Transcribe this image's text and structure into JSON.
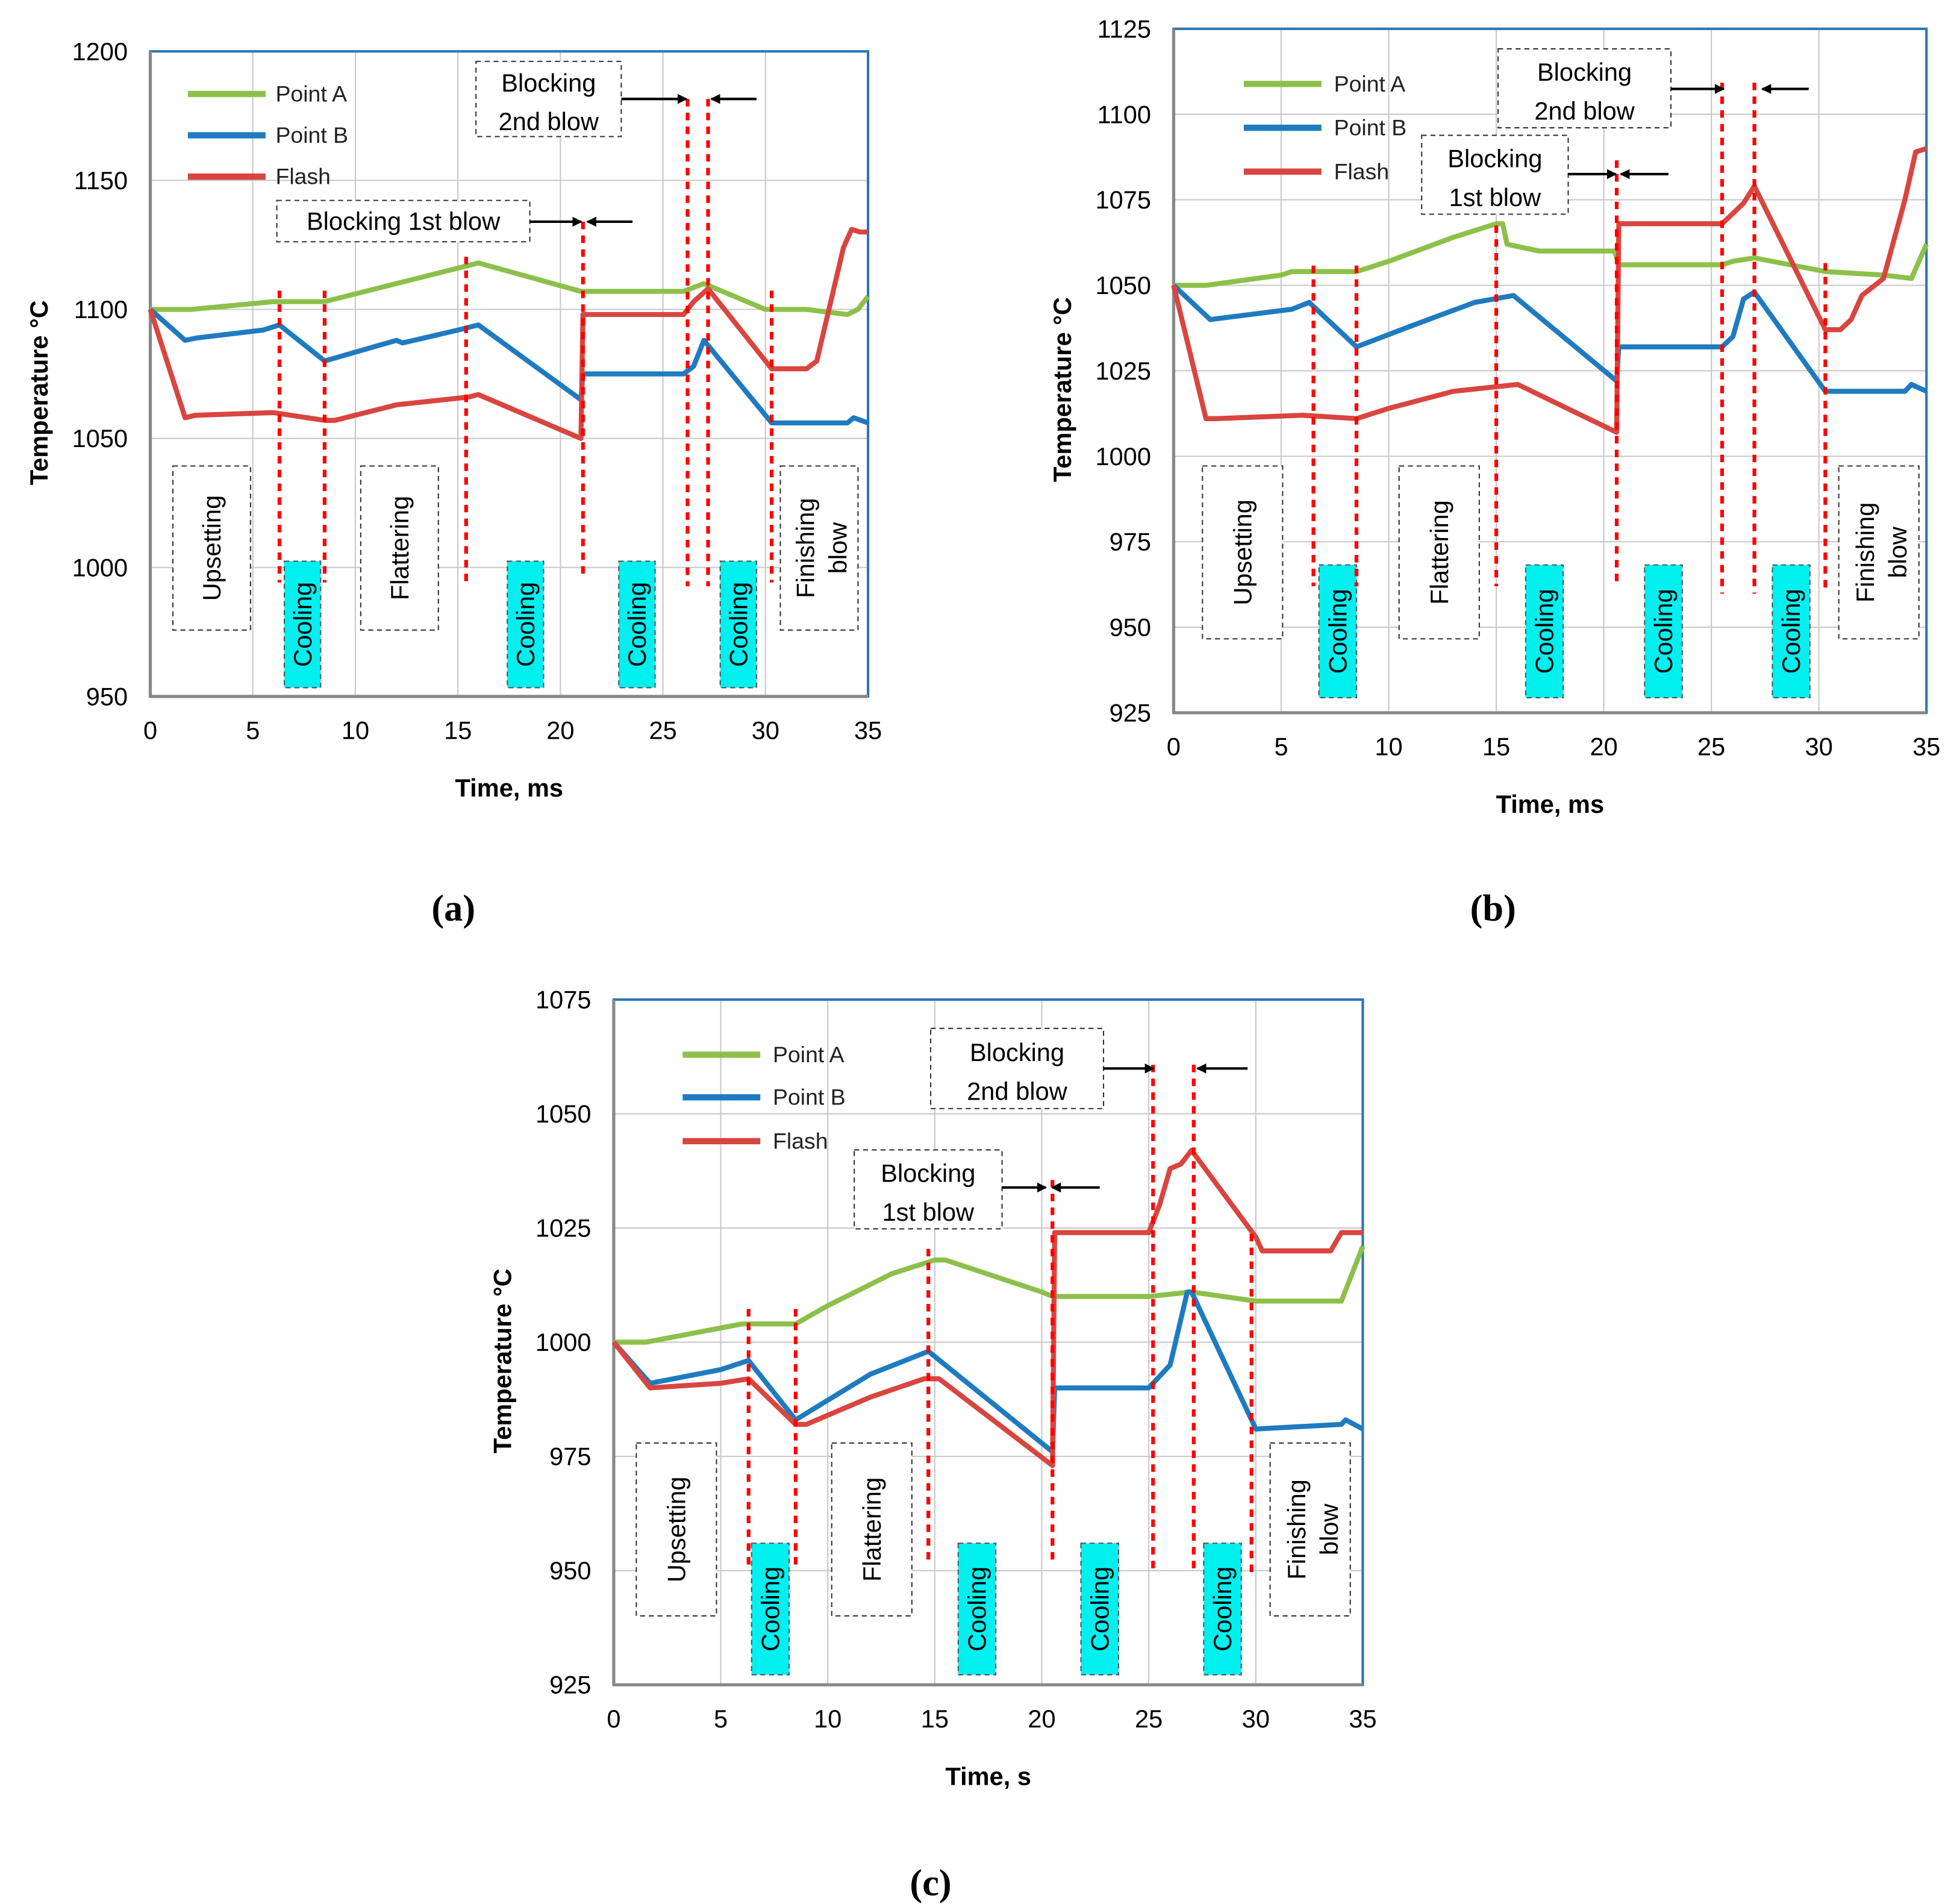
{
  "colors": {
    "point_a": "#8dc04b",
    "point_b": "#1f7bc0",
    "flash": "#d9453f",
    "boundary": "#ff0000",
    "cooling": "#00f0f0",
    "frame": "#2e75b6",
    "grid": "#c8c8c8"
  },
  "chart_data": [
    {
      "type": "line",
      "caption": "(a)",
      "xlabel": "Time, ms",
      "ylabel": "Temperature °C",
      "xlim": [
        0,
        35
      ],
      "ylim": [
        950,
        1200
      ],
      "xticks": [
        "0",
        "5",
        "10",
        "15",
        "20",
        "25",
        "30",
        "35"
      ],
      "yticks": [
        "950",
        "1000",
        "1050",
        "1100",
        "1150",
        "1200"
      ],
      "grid": true,
      "legend": "top-left",
      "series": [
        {
          "name": "Point A",
          "color": "#8dc04b",
          "points": [
            [
              0,
              1100
            ],
            [
              2,
              1100
            ],
            [
              6,
              1103
            ],
            [
              8.5,
              1103
            ],
            [
              10,
              1106
            ],
            [
              13,
              1112
            ],
            [
              15.5,
              1117
            ],
            [
              16,
              1118
            ],
            [
              21,
              1107
            ],
            [
              26,
              1107
            ],
            [
              27,
              1110
            ],
            [
              30,
              1100
            ],
            [
              32,
              1100
            ],
            [
              33,
              1099
            ],
            [
              34,
              1098
            ],
            [
              34.5,
              1100
            ],
            [
              35,
              1105
            ]
          ]
        },
        {
          "name": "Point B",
          "color": "#1f7bc0",
          "points": [
            [
              0,
              1100
            ],
            [
              1.7,
              1088
            ],
            [
              2.3,
              1089
            ],
            [
              5.5,
              1092
            ],
            [
              6.3,
              1094
            ],
            [
              8.5,
              1080
            ],
            [
              12,
              1088
            ],
            [
              12.3,
              1087
            ],
            [
              15,
              1092
            ],
            [
              16,
              1094
            ],
            [
              21,
              1065
            ],
            [
              21.1,
              1075
            ],
            [
              26,
              1075
            ],
            [
              26.5,
              1078
            ],
            [
              27,
              1088
            ],
            [
              30.3,
              1056
            ],
            [
              34,
              1056
            ],
            [
              34.3,
              1058
            ],
            [
              35,
              1056
            ]
          ]
        },
        {
          "name": "Flash",
          "color": "#d9453f",
          "points": [
            [
              0,
              1100
            ],
            [
              1.7,
              1058
            ],
            [
              2.2,
              1059
            ],
            [
              6,
              1060
            ],
            [
              8.5,
              1057
            ],
            [
              9,
              1057
            ],
            [
              12,
              1063
            ],
            [
              15.5,
              1066
            ],
            [
              16,
              1067
            ],
            [
              21,
              1050
            ],
            [
              21.1,
              1098
            ],
            [
              26,
              1098
            ],
            [
              26.5,
              1103
            ],
            [
              27.2,
              1108
            ],
            [
              30.3,
              1077
            ],
            [
              32,
              1077
            ],
            [
              32.5,
              1080
            ],
            [
              33.8,
              1124
            ],
            [
              34.2,
              1131
            ],
            [
              34.6,
              1130
            ],
            [
              35,
              1130
            ]
          ]
        }
      ],
      "boundaries": [
        6.3,
        8.5,
        15.4,
        21.1,
        26.2,
        27.2,
        30.3
      ],
      "stages": [
        "Upsetting",
        "Cooling",
        "Flattering",
        "Cooling",
        "Cooling",
        "Cooling",
        "Finishing blow"
      ],
      "annotations": [
        "Blocking 2nd blow",
        "Blocking 1st blow"
      ]
    },
    {
      "type": "line",
      "caption": "(b)",
      "xlabel": "Time, ms",
      "ylabel": "Temperature °C",
      "xlim": [
        0,
        35
      ],
      "ylim": [
        925,
        1125
      ],
      "xticks": [
        "0",
        "5",
        "10",
        "15",
        "20",
        "25",
        "30",
        "35"
      ],
      "yticks": [
        "925",
        "950",
        "975",
        "1000",
        "1025",
        "1050",
        "1075",
        "1100",
        "1125"
      ],
      "grid": true,
      "legend": "top-left",
      "series": [
        {
          "name": "Point A",
          "color": "#8dc04b",
          "points": [
            [
              0,
              1050
            ],
            [
              1.5,
              1050
            ],
            [
              5,
              1053
            ],
            [
              5.5,
              1054
            ],
            [
              8.5,
              1054
            ],
            [
              10,
              1057
            ],
            [
              13,
              1064
            ],
            [
              15,
              1068
            ],
            [
              15.3,
              1068
            ],
            [
              15.5,
              1062
            ],
            [
              17,
              1060
            ],
            [
              20.5,
              1060
            ],
            [
              20.7,
              1056
            ],
            [
              25.5,
              1056
            ],
            [
              26,
              1057
            ],
            [
              27,
              1058
            ],
            [
              30.3,
              1054
            ],
            [
              33,
              1053
            ],
            [
              34.3,
              1052
            ],
            [
              35,
              1062
            ]
          ]
        },
        {
          "name": "Point B",
          "color": "#1f7bc0",
          "points": [
            [
              0,
              1050
            ],
            [
              1.7,
              1040
            ],
            [
              5.5,
              1043
            ],
            [
              6.3,
              1045
            ],
            [
              8.5,
              1032
            ],
            [
              11,
              1038
            ],
            [
              14,
              1045
            ],
            [
              15.8,
              1047
            ],
            [
              20.6,
              1022
            ],
            [
              20.7,
              1032
            ],
            [
              25.5,
              1032
            ],
            [
              26,
              1035
            ],
            [
              26.5,
              1046
            ],
            [
              27,
              1048
            ],
            [
              30.3,
              1019
            ],
            [
              34,
              1019
            ],
            [
              34.3,
              1021
            ],
            [
              35,
              1019
            ]
          ]
        },
        {
          "name": "Flash",
          "color": "#d9453f",
          "points": [
            [
              0,
              1050
            ],
            [
              1.5,
              1011
            ],
            [
              2,
              1011
            ],
            [
              6,
              1012
            ],
            [
              8.5,
              1011
            ],
            [
              10,
              1014
            ],
            [
              13,
              1019
            ],
            [
              16,
              1021
            ],
            [
              20.6,
              1007
            ],
            [
              20.7,
              1068
            ],
            [
              25.5,
              1068
            ],
            [
              26,
              1071
            ],
            [
              26.5,
              1074
            ],
            [
              27,
              1079
            ],
            [
              30.3,
              1037
            ],
            [
              31,
              1037
            ],
            [
              31.5,
              1040
            ],
            [
              32,
              1047
            ],
            [
              33,
              1052
            ],
            [
              34,
              1075
            ],
            [
              34.5,
              1089
            ],
            [
              35,
              1090
            ]
          ]
        }
      ],
      "boundaries": [
        6.5,
        8.5,
        15,
        20.6,
        25.5,
        27,
        30.3
      ],
      "stages": [
        "Upsetting",
        "Cooling",
        "Flattering",
        "Cooling",
        "Cooling",
        "Cooling",
        "Finishing blow"
      ],
      "annotations": [
        "Blocking 2nd blow",
        "Blocking 1st blow"
      ]
    },
    {
      "type": "line",
      "caption": "(c)",
      "xlabel": "Time, s",
      "ylabel": "Temperature °C",
      "xlim": [
        0,
        35
      ],
      "ylim": [
        925,
        1075
      ],
      "xticks": [
        "0",
        "5",
        "10",
        "15",
        "20",
        "25",
        "30",
        "35"
      ],
      "yticks": [
        "925",
        "950",
        "975",
        "1000",
        "1025",
        "1050",
        "1075"
      ],
      "grid": true,
      "legend": "top-left",
      "series": [
        {
          "name": "Point A",
          "color": "#8dc04b",
          "points": [
            [
              0,
              1000
            ],
            [
              1.5,
              1000
            ],
            [
              6,
              1004
            ],
            [
              8.5,
              1004
            ],
            [
              10,
              1008
            ],
            [
              13,
              1015
            ],
            [
              15,
              1018
            ],
            [
              15.5,
              1018
            ],
            [
              20,
              1011
            ],
            [
              20.5,
              1010
            ],
            [
              25,
              1010
            ],
            [
              27,
              1011
            ],
            [
              30,
              1009
            ],
            [
              33,
              1009
            ],
            [
              34,
              1009
            ],
            [
              35,
              1021
            ]
          ]
        },
        {
          "name": "Point B",
          "color": "#1f7bc0",
          "points": [
            [
              0,
              1000
            ],
            [
              1.7,
              991
            ],
            [
              5,
              994
            ],
            [
              6.3,
              996
            ],
            [
              8.5,
              983
            ],
            [
              12,
              993
            ],
            [
              14.7,
              998
            ],
            [
              20.5,
              976
            ],
            [
              20.6,
              990
            ],
            [
              25,
              990
            ],
            [
              26,
              995
            ],
            [
              26.8,
              1011
            ],
            [
              27,
              1011
            ],
            [
              30,
              981
            ],
            [
              34,
              982
            ],
            [
              34.2,
              983
            ],
            [
              35,
              981
            ]
          ]
        },
        {
          "name": "Flash",
          "color": "#d9453f",
          "points": [
            [
              0,
              1000
            ],
            [
              1.7,
              990
            ],
            [
              5,
              991
            ],
            [
              6.3,
              992
            ],
            [
              8.5,
              982
            ],
            [
              9,
              982
            ],
            [
              12,
              988
            ],
            [
              14.5,
              992
            ],
            [
              15.2,
              992
            ],
            [
              20.5,
              973
            ],
            [
              20.6,
              1024
            ],
            [
              25,
              1024
            ],
            [
              25.5,
              1030
            ],
            [
              26,
              1038
            ],
            [
              26.5,
              1039
            ],
            [
              27,
              1042
            ],
            [
              30,
              1023
            ],
            [
              30.3,
              1020
            ],
            [
              33.5,
              1020
            ],
            [
              34,
              1024
            ],
            [
              35,
              1024
            ]
          ]
        }
      ],
      "boundaries": [
        6.3,
        8.5,
        14.7,
        20.5,
        25.2,
        27.1,
        29.8
      ],
      "stages": [
        "Upsetting",
        "Cooling",
        "Flattering",
        "Cooling",
        "Cooling",
        "Cooling",
        "Finishing blow"
      ],
      "annotations": [
        "Blocking 2nd blow",
        "Blocking 1st blow"
      ]
    }
  ]
}
